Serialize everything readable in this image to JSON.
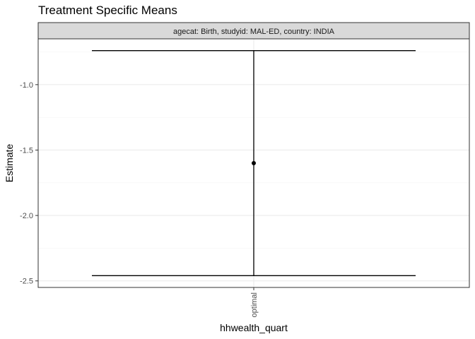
{
  "chart_data": {
    "type": "scatter",
    "title": "Treatment Specific Means",
    "facet_label": "agecat: Birth, studyid: MAL-ED, country: INDIA",
    "xlabel": "hhwealth_quart",
    "ylabel": "Estimate",
    "categories": [
      "optimal"
    ],
    "points": [
      {
        "x": "optimal",
        "estimate": -1.6,
        "ci_lower": -2.46,
        "ci_upper": -0.74
      }
    ],
    "yticks": [
      -1.0,
      -1.5,
      -2.0,
      -2.5
    ],
    "ytick_labels": [
      "-1.0",
      "-1.5",
      "-2.0",
      "-2.5"
    ],
    "ylim": [
      -2.55,
      -0.65
    ],
    "grid": true,
    "theme": "bw",
    "colors": {
      "panel_border": "#333333",
      "strip_fill": "#d9d9d9",
      "grid_major": "#ebebeb",
      "grid_minor": "#f5f5f5",
      "mark": "#000000"
    }
  }
}
